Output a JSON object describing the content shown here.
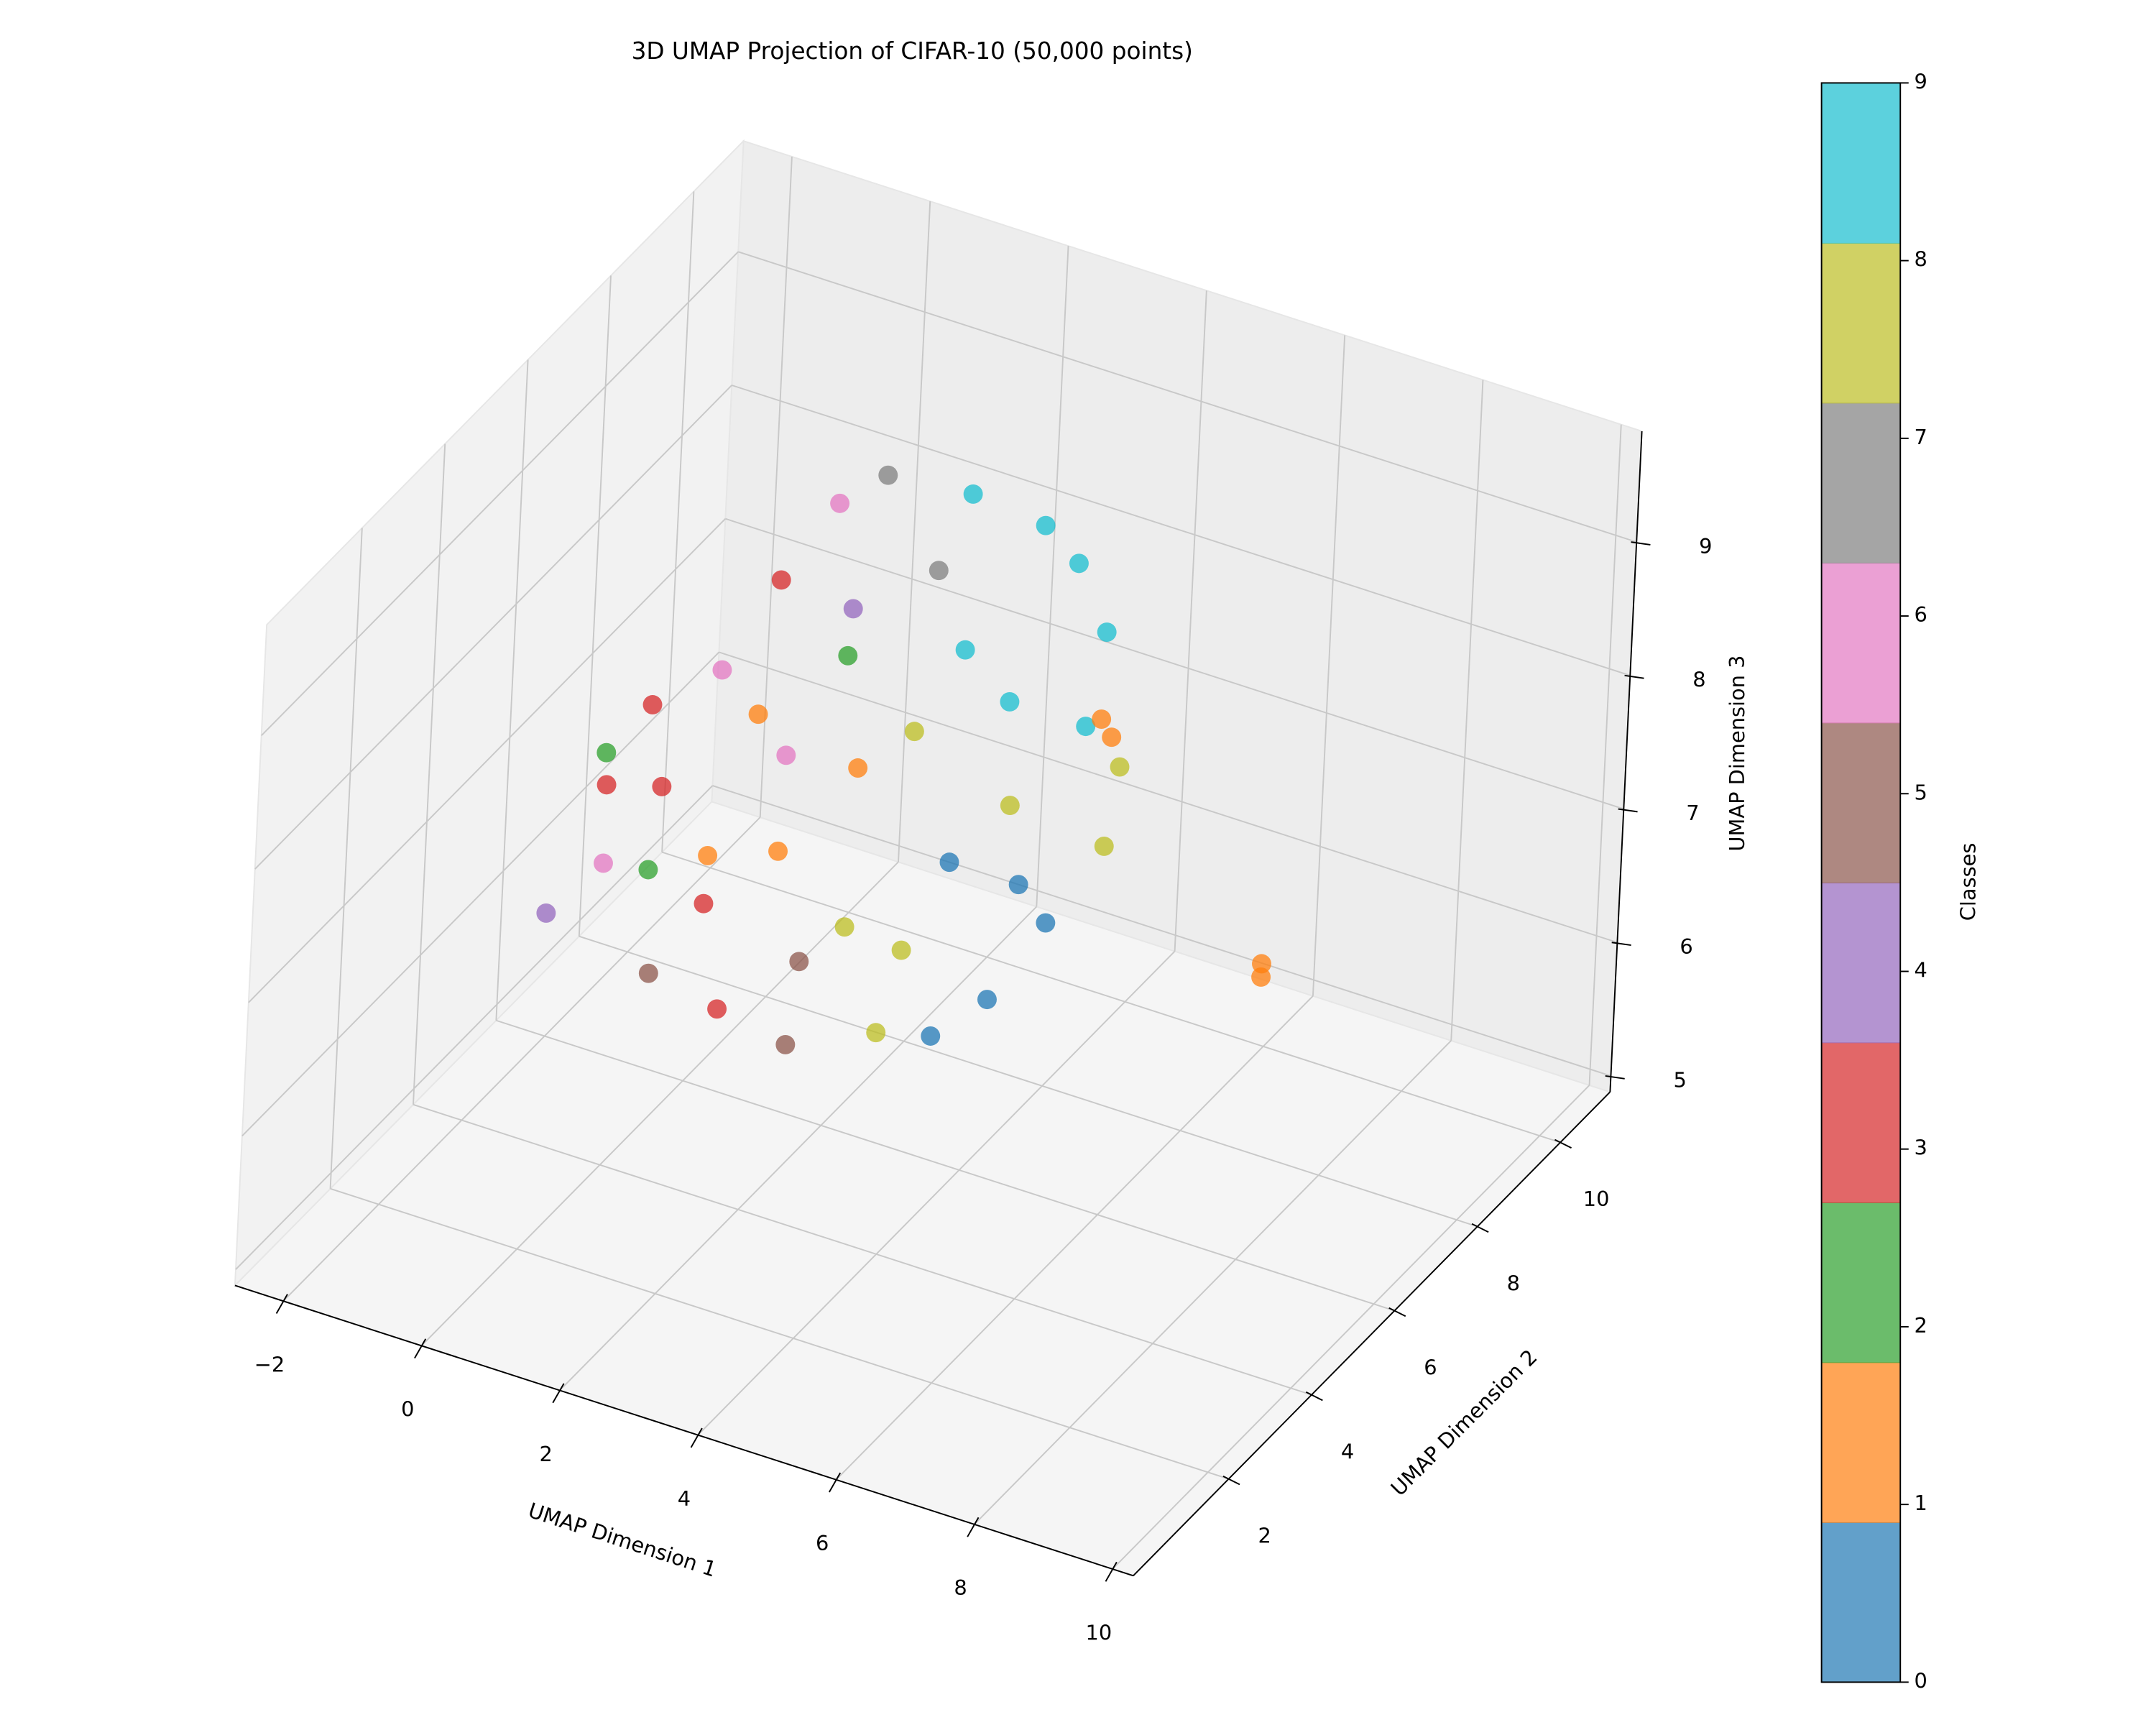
{
  "chart_data": {
    "type": "scatter3d",
    "title": "3D UMAP Projection of CIFAR-10 (50,000 points)",
    "xlabel": "UMAP Dimension 1",
    "ylabel": "UMAP Dimension 2",
    "zlabel": "UMAP Dimension 3",
    "xlim": [
      -2.7,
      10.3
    ],
    "ylim": [
      -0.3,
      11.2
    ],
    "zlim": [
      4.88,
      9.83
    ],
    "xticks": [
      {
        "value": -2,
        "label": "−2"
      },
      0,
      2,
      4,
      6,
      8,
      10
    ],
    "yticks": [
      2,
      4,
      6,
      8,
      10
    ],
    "zticks": [
      5,
      6,
      7,
      8,
      9
    ],
    "grid": true,
    "colorbar": {
      "label": "Classes",
      "lim": [
        0,
        9
      ],
      "ticks": [
        0,
        1,
        2,
        3,
        4,
        5,
        6,
        7,
        8,
        9
      ],
      "colors": [
        "#1f77b4",
        "#ff7f0e",
        "#2ca02c",
        "#d62728",
        "#9467bd",
        "#8c564b",
        "#e377c2",
        "#7f7f7f",
        "#bcbd22",
        "#17becf"
      ]
    },
    "points": {
      "x": [
        -1.5,
        -1,
        -0.5,
        0,
        0.5,
        1,
        1.5,
        2.5,
        3.5,
        4,
        4.5,
        5,
        5,
        4.5,
        4,
        3.5,
        3,
        2,
        1,
        0,
        -1.2,
        -0.8,
        0.2,
        0.8,
        1.5,
        2,
        2.5,
        3,
        3.5,
        2.2,
        1.2,
        0.4,
        -0.3,
        3.8,
        4.2,
        2.8,
        1.8,
        0.6,
        -1.4,
        4.6,
        3.2,
        2.4,
        1.6,
        6,
        6.1,
        8,
        8
      ],
      "y": [
        5,
        5.5,
        6,
        6.5,
        7,
        7.5,
        7.8,
        8.2,
        8.3,
        8.3,
        8.2,
        7.8,
        7.5,
        7,
        6.5,
        6,
        5.5,
        5,
        5,
        5,
        5.8,
        6.2,
        6,
        6.8,
        7,
        6.5,
        7,
        7.3,
        7.6,
        6,
        6,
        5.6,
        5.4,
        7.2,
        6.8,
        6.4,
        5.6,
        6.4,
        6.2,
        7.6,
        6.8,
        7.6,
        6.9,
        5.5,
        5.6,
        6.3,
        6.3
      ],
      "z": [
        6.2,
        6.5,
        7,
        7.8,
        8.4,
        8.9,
        9.1,
        9.0,
        8.9,
        8.7,
        8.3,
        7.5,
        7,
        6.5,
        6,
        5.8,
        5.9,
        5.8,
        5.9,
        6,
        7.2,
        7.5,
        6.6,
        7.2,
        8,
        7.4,
        7.6,
        8.2,
        7.8,
        6.4,
        6.8,
        6.4,
        6.6,
        7.2,
        6.8,
        6.2,
        6.2,
        7.6,
        6.8,
        7.8,
        6.8,
        8.6,
        8.4,
        8.75,
        8.6,
        7,
        6.9
      ],
      "class": [
        4,
        6,
        3,
        6,
        3,
        6,
        7,
        9,
        9,
        9,
        9,
        8,
        8,
        0,
        0,
        0,
        8,
        5,
        3,
        5,
        2,
        3,
        1,
        6,
        2,
        1,
        8,
        9,
        9,
        8,
        1,
        3,
        2,
        8,
        0,
        8,
        5,
        1,
        3,
        9,
        0,
        7,
        4,
        1,
        1,
        1,
        1
      ]
    }
  }
}
